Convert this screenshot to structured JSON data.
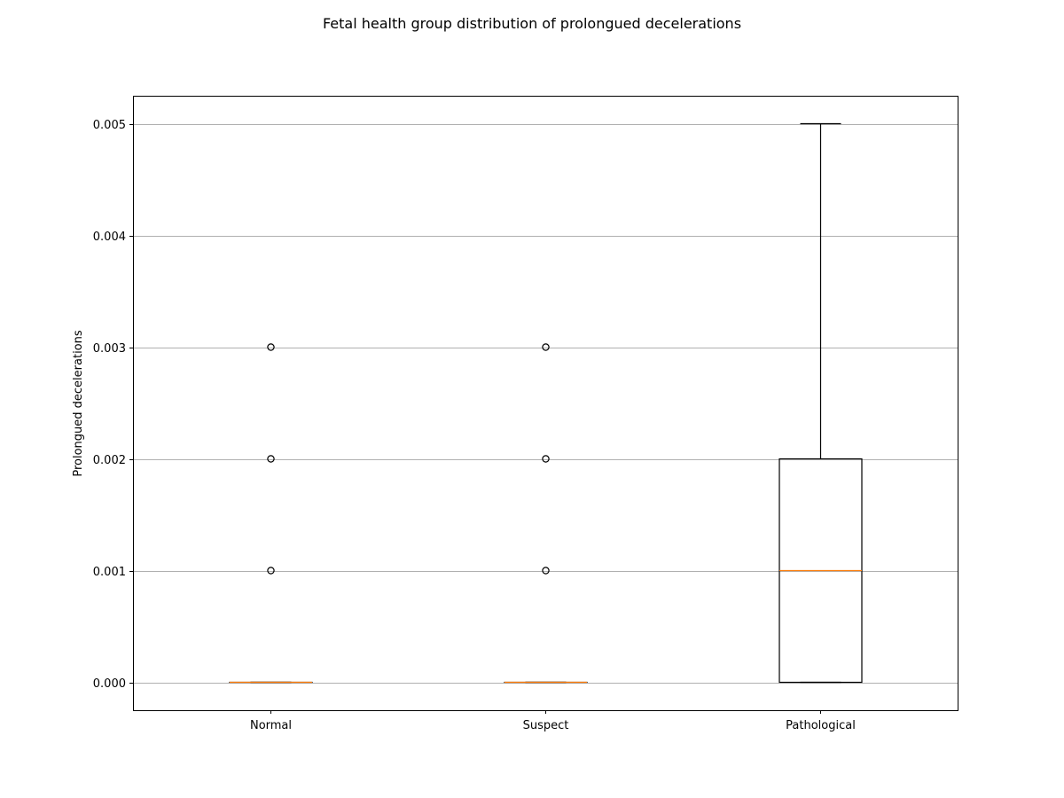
{
  "chart_data": {
    "type": "box",
    "title": "Fetal health group distribution of prolongued decelerations",
    "xlabel": "",
    "ylabel": "Prolongued decelerations",
    "categories": [
      "Normal",
      "Suspect",
      "Pathological"
    ],
    "ylim": [
      -0.00025,
      0.00525
    ],
    "yticks": [
      0.0,
      0.001,
      0.002,
      0.003,
      0.004,
      0.005
    ],
    "ytick_labels": [
      "0.000",
      "0.001",
      "0.002",
      "0.003",
      "0.004",
      "0.005"
    ],
    "grid": "y",
    "boxes": [
      {
        "category": "Normal",
        "whisker_low": 0.0,
        "q1": 0.0,
        "median": 0.0,
        "q3": 0.0,
        "whisker_high": 0.0,
        "outliers": [
          0.001,
          0.002,
          0.003
        ]
      },
      {
        "category": "Suspect",
        "whisker_low": 0.0,
        "q1": 0.0,
        "median": 0.0,
        "q3": 0.0,
        "whisker_high": 0.0,
        "outliers": [
          0.001,
          0.002,
          0.003
        ]
      },
      {
        "category": "Pathological",
        "whisker_low": 0.0,
        "q1": 0.0,
        "median": 0.001,
        "q3": 0.002,
        "whisker_high": 0.005,
        "outliers": []
      }
    ],
    "colors": {
      "box": "#000000",
      "median": "#ff7f0e",
      "grid": "#b0b0b0",
      "outlier": "#000000"
    }
  }
}
